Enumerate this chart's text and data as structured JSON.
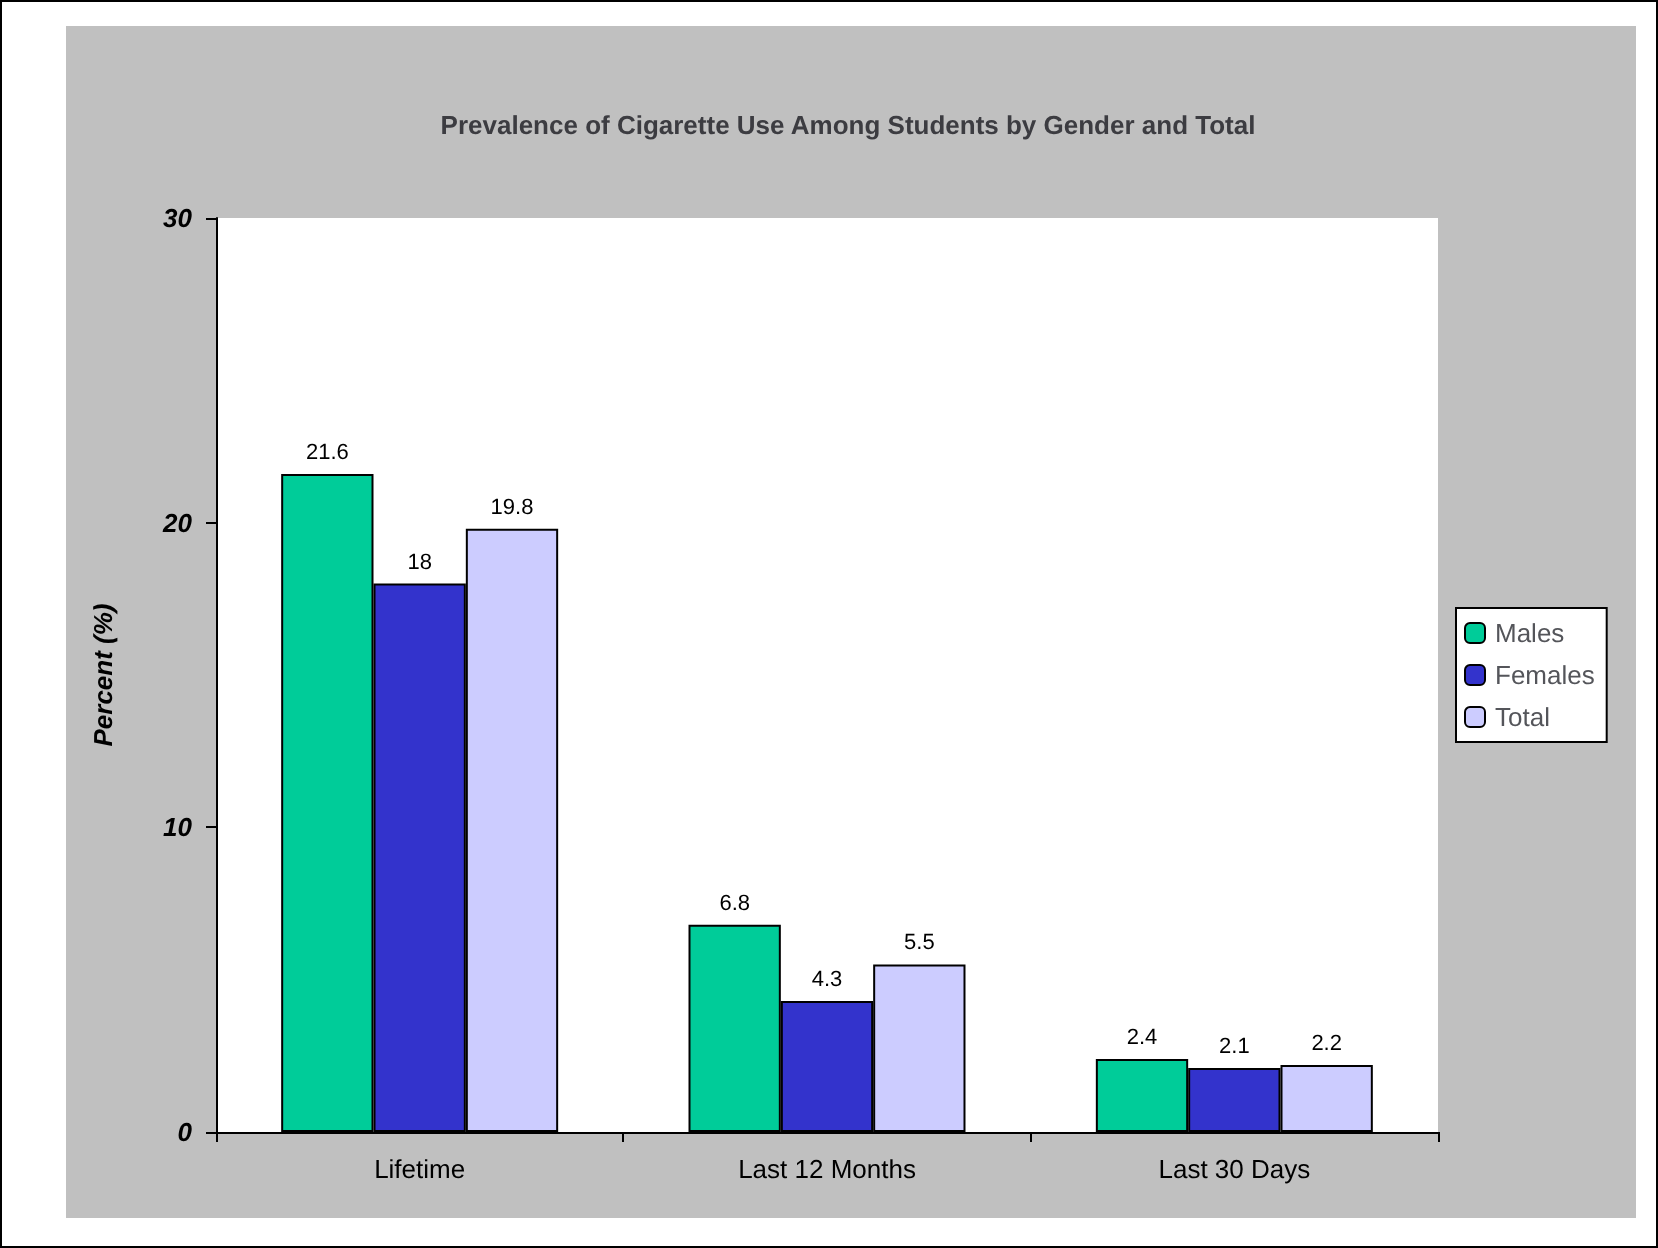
{
  "chart_data": {
    "type": "bar",
    "title": "Prevalence of Cigarette Use Among Students by Gender and Total",
    "ylabel": "Percent (%)",
    "categories": [
      "Lifetime",
      "Last 12 Months",
      "Last 30 Days"
    ],
    "series": [
      {
        "name": "Males",
        "color": "#00cc99",
        "values": [
          21.6,
          6.8,
          2.4
        ]
      },
      {
        "name": "Females",
        "color": "#3333cc",
        "values": [
          18,
          4.3,
          2.1
        ]
      },
      {
        "name": "Total",
        "color": "#ccccff",
        "values": [
          19.8,
          5.5,
          2.2
        ]
      }
    ],
    "ylim": [
      0,
      30
    ],
    "yticks": [
      0,
      10,
      20,
      30
    ],
    "grid": false,
    "legend": "right",
    "data_labels": true
  }
}
